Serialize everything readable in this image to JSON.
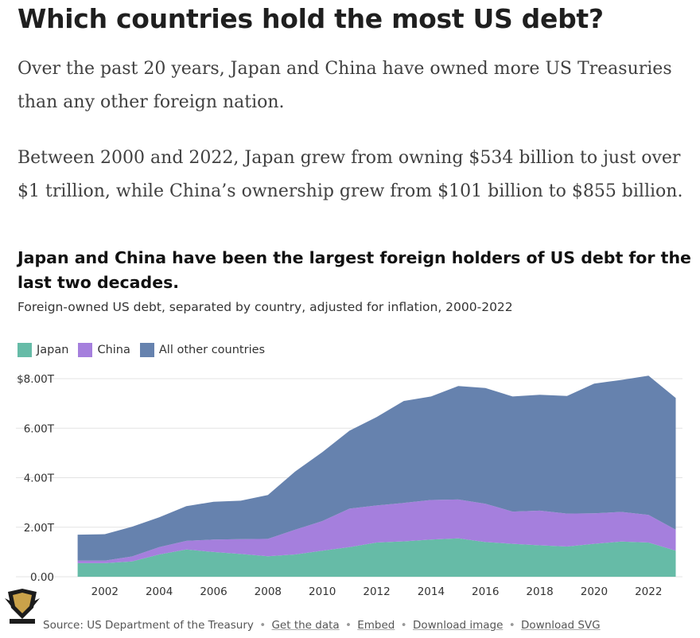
{
  "headline": "Which countries hold the most US debt?",
  "paragraphs": [
    "Over the past 20 years, Japan and China have owned more US Treasuries than any other foreign nation.",
    "Between 2000 and 2022, Japan grew from owning $534 billion to just over $1 trillion, while China’s ownership grew from $101 billion to $855 billion."
  ],
  "chart_data": {
    "type": "area",
    "stacked": true,
    "title": "Japan and China have been the largest foreign holders of US debt for the last two decades.",
    "subtitle": "Foreign-owned US debt, separated by country, adjusted for inflation, 2000-2022",
    "legend_position": "top-left",
    "grid": true,
    "x": [
      2001,
      2002,
      2003,
      2004,
      2005,
      2006,
      2007,
      2008,
      2009,
      2010,
      2011,
      2012,
      2013,
      2014,
      2015,
      2016,
      2017,
      2018,
      2019,
      2020,
      2021,
      2022,
      2023
    ],
    "series": [
      {
        "name": "Japan",
        "color": "#66bba7",
        "values": [
          0.55,
          0.55,
          0.62,
          0.9,
          1.1,
          1.0,
          0.92,
          0.83,
          0.9,
          1.05,
          1.2,
          1.38,
          1.43,
          1.5,
          1.55,
          1.4,
          1.33,
          1.27,
          1.22,
          1.33,
          1.42,
          1.38,
          1.05
        ]
      },
      {
        "name": "China",
        "color": "#a57fdd",
        "values": [
          0.1,
          0.1,
          0.2,
          0.3,
          0.35,
          0.5,
          0.6,
          0.7,
          1.0,
          1.2,
          1.55,
          1.5,
          1.55,
          1.6,
          1.57,
          1.55,
          1.3,
          1.4,
          1.33,
          1.23,
          1.2,
          1.12,
          0.85
        ]
      },
      {
        "name": "All other countries",
        "color": "#6682ae",
        "values": [
          1.05,
          1.07,
          1.2,
          1.2,
          1.4,
          1.53,
          1.55,
          1.77,
          2.35,
          2.78,
          3.15,
          3.57,
          4.12,
          4.18,
          4.58,
          4.67,
          4.65,
          4.68,
          4.75,
          5.24,
          5.33,
          5.62,
          5.32
        ]
      }
    ],
    "ylim": [
      0,
      8
    ],
    "y_ticks": [
      {
        "value": 0,
        "label": "0.00"
      },
      {
        "value": 2,
        "label": "2.00T"
      },
      {
        "value": 4,
        "label": "4.00T"
      },
      {
        "value": 6,
        "label": "6.00T"
      },
      {
        "value": 8,
        "label": "$8.00T"
      }
    ],
    "x_ticks": [
      2002,
      2004,
      2006,
      2008,
      2010,
      2012,
      2014,
      2016,
      2018,
      2020,
      2022
    ],
    "xlim": [
      2000.25,
      2023.25
    ]
  },
  "footer": {
    "source": "Source: US Department of the Treasury",
    "links": [
      "Get the data",
      "Embed",
      "Download image",
      "Download SVG"
    ],
    "separator": "•"
  }
}
